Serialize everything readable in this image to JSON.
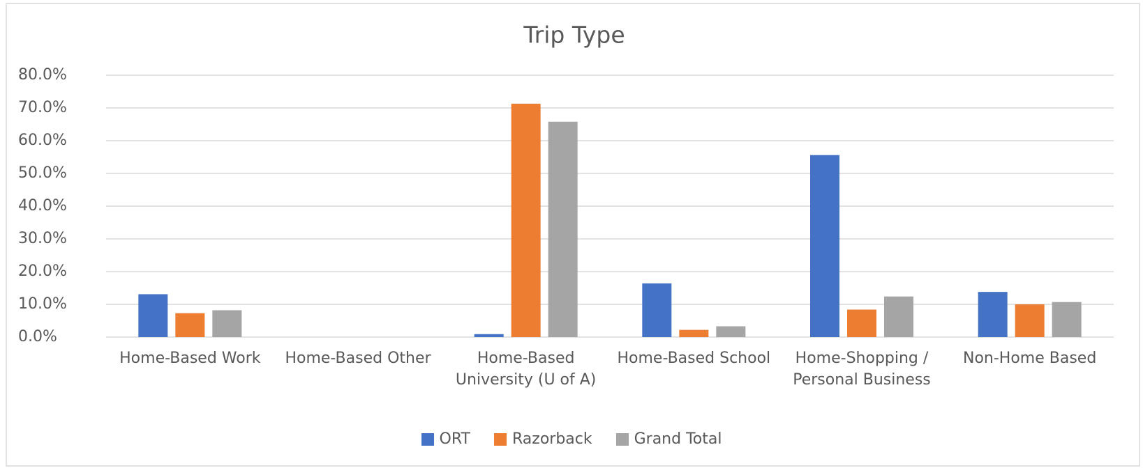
{
  "chart_data": {
    "type": "bar",
    "title": "Trip Type",
    "categories": [
      "Home-Based Work",
      "Home-Based Other",
      "Home-Based University (U of A)",
      "Home-Based School",
      "Home-Shopping / Personal Business",
      "Non-Home Based"
    ],
    "series": [
      {
        "name": "ORT",
        "color": "#4472c4",
        "values": [
          13.1,
          0,
          0.9,
          16.4,
          55.6,
          13.8
        ]
      },
      {
        "name": "Razorback",
        "color": "#ed7d31",
        "values": [
          7.3,
          0,
          71.3,
          2.2,
          8.4,
          10.0
        ]
      },
      {
        "name": "Grand Total",
        "color": "#a5a5a5",
        "values": [
          8.2,
          0,
          65.8,
          3.3,
          12.4,
          10.7
        ]
      }
    ],
    "ylim": [
      0,
      80
    ],
    "yticks": [
      {
        "value": 0,
        "label": "0.0%"
      },
      {
        "value": 10,
        "label": "10.0%"
      },
      {
        "value": 20,
        "label": "20.0%"
      },
      {
        "value": 30,
        "label": "30.0%"
      },
      {
        "value": 40,
        "label": "40.0%"
      },
      {
        "value": 50,
        "label": "50.0%"
      },
      {
        "value": 60,
        "label": "60.0%"
      },
      {
        "value": 70,
        "label": "70.0%"
      },
      {
        "value": 80,
        "label": "80.0%"
      }
    ],
    "grid": true,
    "legend": "bottom"
  }
}
